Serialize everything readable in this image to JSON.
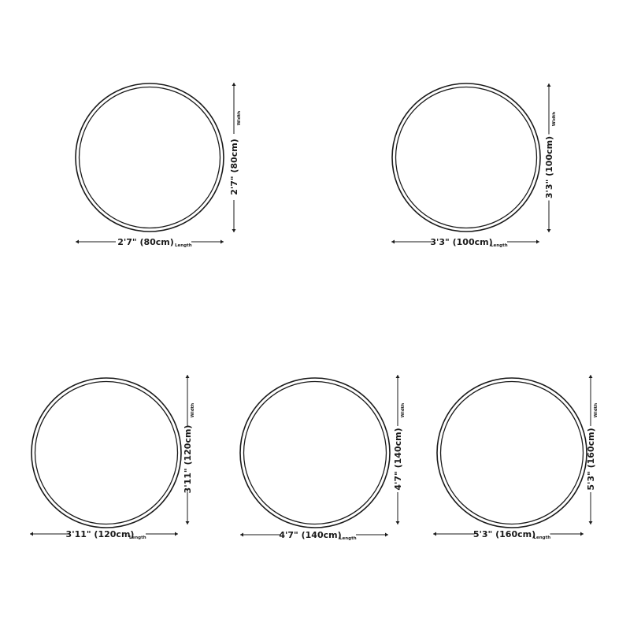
{
  "sizes": [
    {
      "width_label": "2'7\" (80cm)",
      "length_label": "2'7\" (80cm)",
      "width_caption": "Width",
      "length_caption": "Length"
    },
    {
      "width_label": "3'3\" (100cm)",
      "length_label": "3'3\" (100cm)",
      "width_caption": "Width",
      "length_caption": "Length"
    },
    {
      "width_label": "3'11\" (120cm)",
      "length_label": "3'11\" (120cm)",
      "width_caption": "Width",
      "length_caption": "Length"
    },
    {
      "width_label": "4'7\" (140cm)",
      "length_label": "4'7\" (140cm)",
      "width_caption": "Width",
      "length_caption": "Length"
    },
    {
      "width_label": "5'3\" (160cm)",
      "length_label": "5'3\" (160cm)",
      "width_caption": "Width",
      "length_caption": "Length"
    }
  ],
  "colors": {
    "stroke": "#1a1a1a",
    "background": "#ffffff"
  }
}
